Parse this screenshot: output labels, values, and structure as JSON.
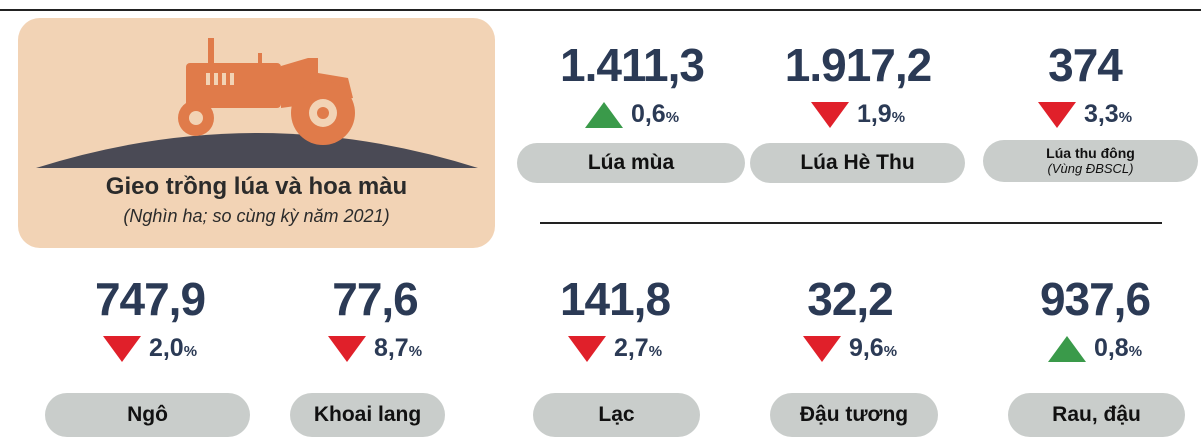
{
  "header": {
    "title": "Gieo trồng lúa và hoa màu",
    "subtitle": "(Nghìn ha; so cùng kỳ năm 2021)"
  },
  "unit": "%",
  "items": [
    {
      "value": "1.411,3",
      "change": "0,6",
      "direction": "up",
      "label": "Lúa mùa"
    },
    {
      "value": "1.917,2",
      "change": "1,9",
      "direction": "down",
      "label": "Lúa Hè Thu"
    },
    {
      "value": "374",
      "change": "3,3",
      "direction": "down",
      "label": "Lúa thu đông",
      "sublabel": "(Vùng ĐBSCL)"
    },
    {
      "value": "747,9",
      "change": "2,0",
      "direction": "down",
      "label": "Ngô"
    },
    {
      "value": "77,6",
      "change": "8,7",
      "direction": "down",
      "label": "Khoai lang"
    },
    {
      "value": "141,8",
      "change": "2,7",
      "direction": "down",
      "label": "Lạc"
    },
    {
      "value": "32,2",
      "change": "9,6",
      "direction": "down",
      "label": "Đậu tương"
    },
    {
      "value": "937,6",
      "change": "0,8",
      "direction": "up",
      "label": "Rau, đậu"
    }
  ]
}
